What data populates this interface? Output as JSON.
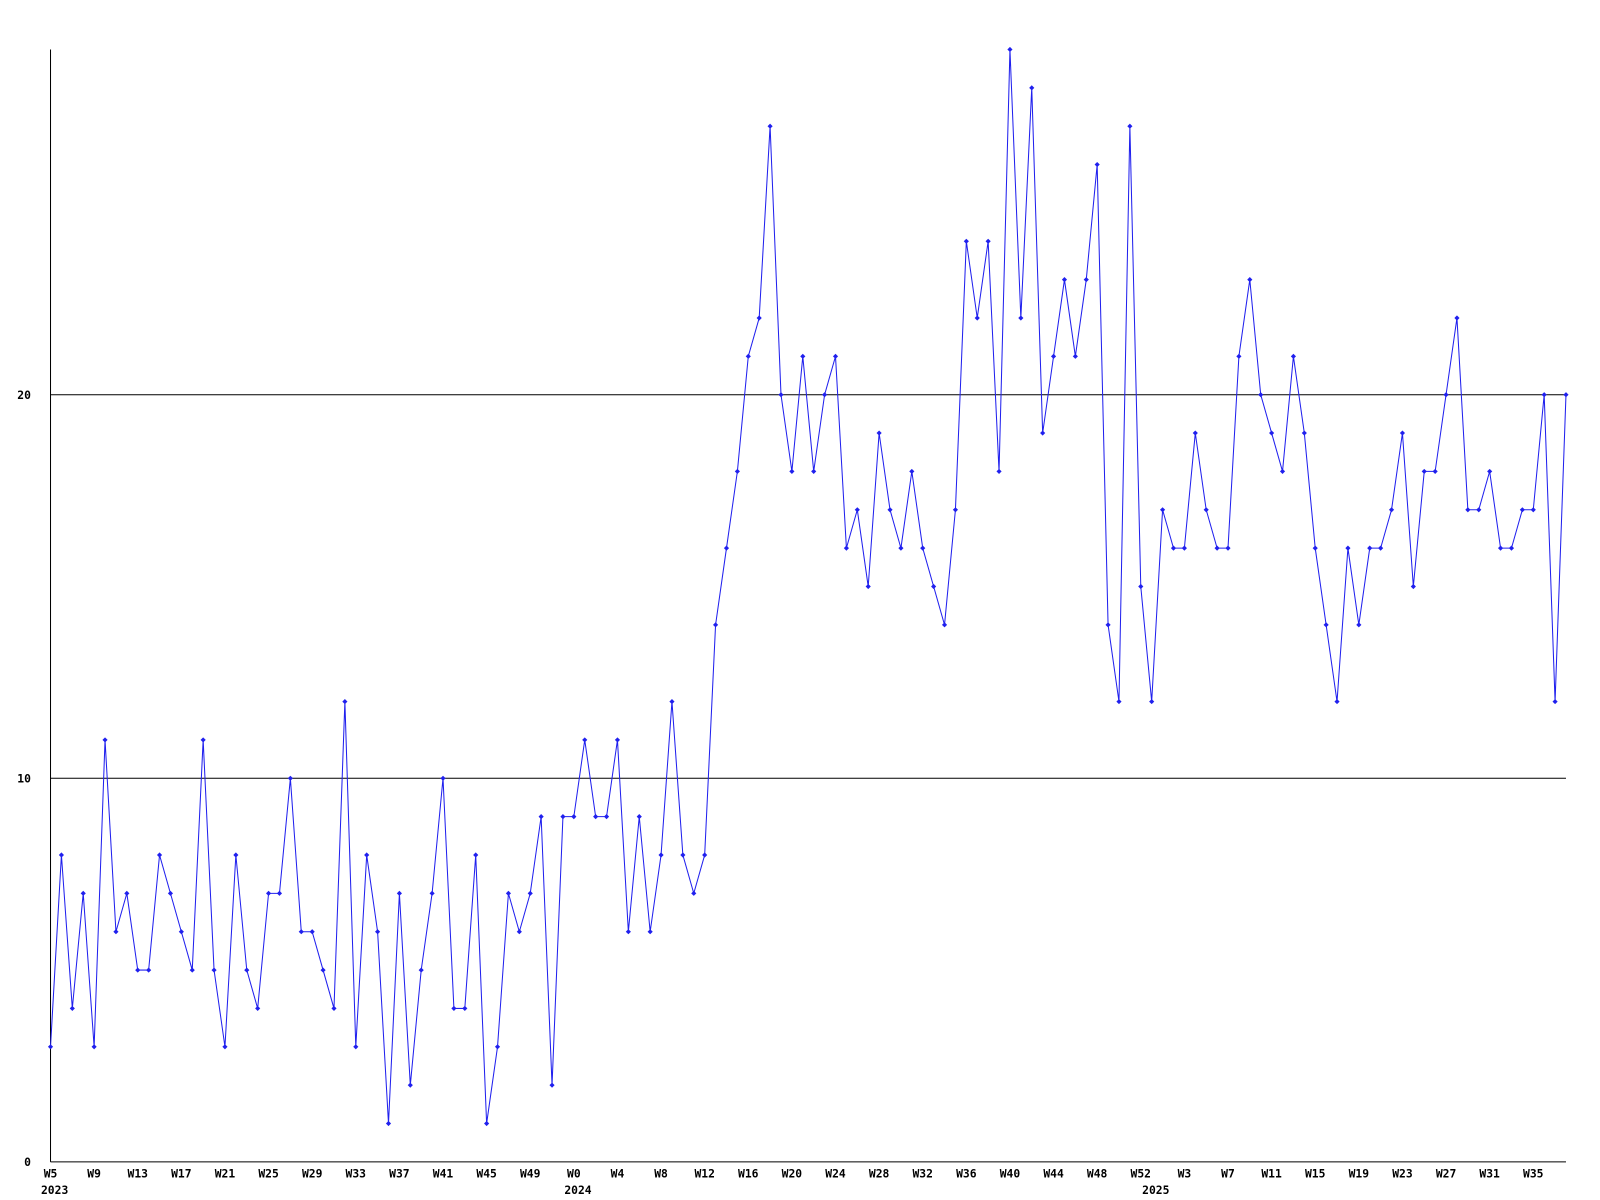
{
  "chart_data": {
    "type": "line",
    "categories": [
      "W5",
      null,
      null,
      null,
      "W9",
      null,
      null,
      null,
      "W13",
      null,
      null,
      null,
      "W17",
      null,
      null,
      null,
      "W21",
      null,
      null,
      null,
      "W25",
      null,
      null,
      null,
      "W29",
      null,
      null,
      null,
      "W33",
      null,
      null,
      null,
      "W37",
      null,
      null,
      null,
      "W41",
      null,
      null,
      null,
      "W45",
      null,
      null,
      null,
      "W49",
      null,
      null,
      null,
      "W0",
      null,
      null,
      null,
      "W4",
      null,
      null,
      null,
      "W8",
      null,
      null,
      null,
      "W12",
      null,
      null,
      null,
      "W16",
      null,
      null,
      null,
      "W20",
      null,
      null,
      null,
      "W24",
      null,
      null,
      null,
      "W28",
      null,
      null,
      null,
      "W32",
      null,
      null,
      null,
      "W36",
      null,
      null,
      null,
      "W40",
      null,
      null,
      null,
      "W44",
      null,
      null,
      null,
      "W48",
      null,
      null,
      null,
      "W52",
      null,
      null,
      null,
      "W3",
      null,
      null,
      null,
      "W7",
      null,
      null,
      null,
      "W11",
      null,
      null,
      null,
      "W15",
      null,
      null,
      null,
      "W19",
      null,
      null,
      null,
      "W23",
      null,
      null,
      null,
      "W27",
      null,
      null,
      null,
      "W31",
      null,
      null,
      null,
      "W35",
      null,
      null,
      null
    ],
    "category_years": [
      "2023",
      null,
      null,
      null,
      null,
      null,
      null,
      null,
      null,
      null,
      null,
      null,
      null,
      null,
      null,
      null,
      null,
      null,
      null,
      null,
      null,
      null,
      null,
      null,
      null,
      null,
      null,
      null,
      null,
      null,
      null,
      null,
      null,
      null,
      null,
      null,
      null,
      null,
      null,
      null,
      null,
      null,
      null,
      null,
      null,
      null,
      null,
      null,
      "2024",
      null,
      null,
      null,
      null,
      null,
      null,
      null,
      null,
      null,
      null,
      null,
      null,
      null,
      null,
      null,
      null,
      null,
      null,
      null,
      null,
      null,
      null,
      null,
      null,
      null,
      null,
      null,
      null,
      null,
      null,
      null,
      null,
      null,
      null,
      null,
      null,
      null,
      null,
      null,
      null,
      null,
      null,
      null,
      null,
      null,
      null,
      null,
      null,
      null,
      null,
      null,
      null,
      "2025",
      null,
      null,
      null,
      null,
      null,
      null,
      null,
      null,
      null,
      null,
      null,
      null,
      null,
      null,
      null,
      null,
      null,
      null,
      null,
      null,
      null,
      null,
      null,
      null,
      null,
      null,
      null,
      null,
      null,
      null,
      null,
      null,
      null,
      null,
      null,
      null,
      null
    ],
    "values": [
      3,
      8,
      4,
      7,
      3,
      11,
      6,
      7,
      5,
      5,
      8,
      7,
      6,
      5,
      11,
      5,
      3,
      8,
      5,
      4,
      7,
      7,
      10,
      6,
      6,
      5,
      4,
      12,
      3,
      8,
      6,
      1,
      7,
      2,
      5,
      7,
      10,
      4,
      4,
      8,
      1,
      3,
      7,
      6,
      7,
      9,
      2,
      9,
      9,
      11,
      9,
      9,
      11,
      6,
      9,
      6,
      8,
      12,
      8,
      7,
      8,
      14,
      16,
      18,
      21,
      22,
      27,
      20,
      18,
      21,
      18,
      20,
      21,
      16,
      17,
      15,
      19,
      17,
      16,
      18,
      16,
      15,
      14,
      17,
      24,
      22,
      24,
      18,
      29,
      22,
      28,
      19,
      21,
      23,
      21,
      23,
      26,
      14,
      12,
      27,
      15,
      12,
      17,
      16,
      16,
      19,
      17,
      16,
      16,
      21,
      23,
      20,
      19,
      18,
      21,
      19,
      16,
      14,
      12,
      16,
      14,
      16,
      16,
      17,
      19,
      15,
      18,
      18,
      20,
      22,
      17,
      17,
      18,
      16,
      16,
      17,
      17,
      20,
      12,
      20
    ],
    "color": "#2020ee",
    "ylim": [
      0,
      29
    ],
    "yticks": [
      0,
      10,
      20
    ],
    "grid": true
  }
}
